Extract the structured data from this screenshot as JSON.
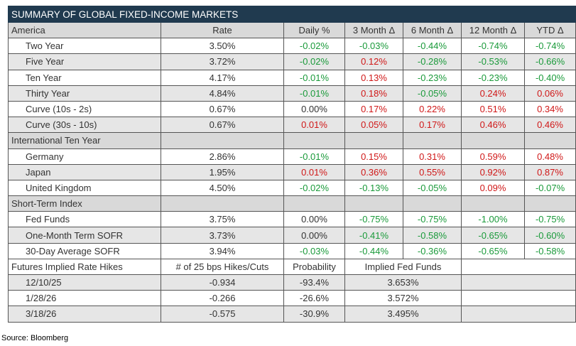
{
  "title": "SUMMARY OF GLOBAL FIXED-INCOME MARKETS",
  "headers": {
    "america": "America",
    "rate": "Rate",
    "daily": "Daily %",
    "m3": "3 Month Δ",
    "m6": "6 Month Δ",
    "m12": "12 Month Δ",
    "ytd": "YTD Δ"
  },
  "america": [
    {
      "label": "Two Year",
      "rate": "3.50%",
      "daily": "-0.02%",
      "m3": "-0.03%",
      "m6": "-0.44%",
      "m12": "-0.74%",
      "ytd": "-0.74%"
    },
    {
      "label": "Five Year",
      "rate": "3.72%",
      "daily": "-0.02%",
      "m3": "0.12%",
      "m6": "-0.28%",
      "m12": "-0.53%",
      "ytd": "-0.66%"
    },
    {
      "label": "Ten Year",
      "rate": "4.17%",
      "daily": "-0.01%",
      "m3": "0.13%",
      "m6": "-0.23%",
      "m12": "-0.23%",
      "ytd": "-0.40%"
    },
    {
      "label": "Thirty Year",
      "rate": "4.84%",
      "daily": "-0.01%",
      "m3": "0.18%",
      "m6": "-0.05%",
      "m12": "0.24%",
      "ytd": "0.06%"
    },
    {
      "label": "Curve (10s - 2s)",
      "rate": "0.67%",
      "daily": "0.00%",
      "m3": "0.17%",
      "m6": "0.22%",
      "m12": "0.51%",
      "ytd": "0.34%"
    },
    {
      "label": "Curve (30s - 10s)",
      "rate": "0.67%",
      "daily": "0.01%",
      "m3": "0.05%",
      "m6": "0.17%",
      "m12": "0.46%",
      "ytd": "0.46%"
    }
  ],
  "international_header": "International Ten Year",
  "international": [
    {
      "label": "Germany",
      "rate": "2.86%",
      "daily": "-0.01%",
      "m3": "0.15%",
      "m6": "0.31%",
      "m12": "0.59%",
      "ytd": "0.48%"
    },
    {
      "label": "Japan",
      "rate": "1.95%",
      "daily": "0.01%",
      "m3": "0.36%",
      "m6": "0.55%",
      "m12": "0.92%",
      "ytd": "0.87%"
    },
    {
      "label": "United Kingdom",
      "rate": "4.50%",
      "daily": "-0.02%",
      "m3": "-0.13%",
      "m6": "-0.05%",
      "m12": "0.09%",
      "ytd": "-0.07%"
    }
  ],
  "shortterm_header": "Short-Term Index",
  "shortterm": [
    {
      "label": "Fed Funds",
      "rate": "3.75%",
      "daily": "0.00%",
      "m3": "-0.75%",
      "m6": "-0.75%",
      "m12": "-1.00%",
      "ytd": "-0.75%"
    },
    {
      "label": "One-Month Term SOFR",
      "rate": "3.73%",
      "daily": "0.00%",
      "m3": "-0.41%",
      "m6": "-0.58%",
      "m12": "-0.65%",
      "ytd": "-0.60%"
    },
    {
      "label": "30-Day Average SOFR",
      "rate": "3.94%",
      "daily": "-0.03%",
      "m3": "-0.44%",
      "m6": "-0.36%",
      "m12": "-0.65%",
      "ytd": "-0.58%"
    }
  ],
  "futures_header": {
    "label": "Futures Implied Rate Hikes",
    "hikes": "# of 25 bps Hikes/Cuts",
    "prob": "Probability",
    "implied": "Implied Fed Funds"
  },
  "futures": [
    {
      "date": "12/10/25",
      "hikes": "-0.934",
      "prob": "-93.4%",
      "implied": "3.653%"
    },
    {
      "date": "1/28/26",
      "hikes": "-0.266",
      "prob": "-26.6%",
      "implied": "3.572%"
    },
    {
      "date": "3/18/26",
      "hikes": "-0.575",
      "prob": "-30.9%",
      "implied": "3.495%"
    }
  ],
  "source": "Source: Bloomberg",
  "colors": {
    "header_bg": "#203a4f",
    "positive": "#d01818",
    "negative": "#1a9a3a"
  }
}
